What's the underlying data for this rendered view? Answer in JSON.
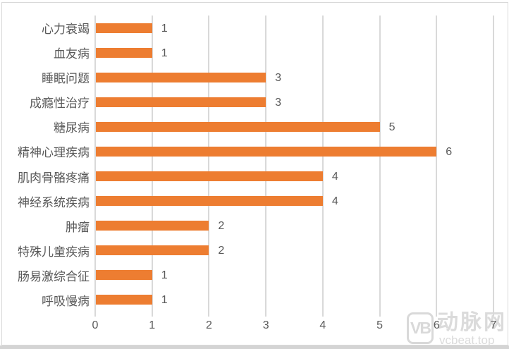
{
  "chart_data": {
    "type": "bar",
    "orientation": "horizontal",
    "title": "",
    "xlabel": "",
    "ylabel": "",
    "categories": [
      "心力衰竭",
      "血友病",
      "睡眠问题",
      "成瘾性治疗",
      "糖尿病",
      "精神心理疾病",
      "肌肉骨骼疼痛",
      "神经系统疾病",
      "肿瘤",
      "特殊儿童疾病",
      "肠易激综合征",
      "呼吸慢病"
    ],
    "values": [
      1,
      1,
      3,
      3,
      5,
      6,
      4,
      4,
      2,
      2,
      1,
      1
    ],
    "data_labels": [
      "1",
      "1",
      "3",
      "3",
      "5",
      "6",
      "4",
      "4",
      "2",
      "2",
      "1",
      "1"
    ],
    "xlim": [
      0,
      7
    ],
    "x_ticks": [
      "0",
      "1",
      "2",
      "3",
      "4",
      "5",
      "6",
      "7"
    ],
    "grid": "vertical",
    "legend": "none",
    "bar_color": "#ED7D31"
  },
  "watermark": {
    "logo_text": "VB",
    "brand": "动脉网",
    "url": "vcbeat.top"
  },
  "colors": {
    "bar": "#ED7D31",
    "gridline": "#D9D9D9",
    "text": "#595959",
    "watermark": "#DBDBDB",
    "border": "#D9D9D9",
    "background": "#FFFFFF"
  }
}
